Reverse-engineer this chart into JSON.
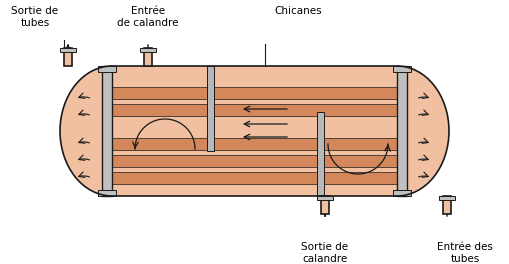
{
  "shell_fill": "#f2c4aa",
  "shell_inner": "#f0c0a0",
  "tube_fill": "#d4875a",
  "tube_gap": "#f0c0a0",
  "baffle_fill": "#b8b8b8",
  "flange_fill": "#c0c0c0",
  "outline": "#1a1a1a",
  "bg": "#ffffff",
  "text_col": "#000000",
  "arrow_col": "#1a1a1a",
  "label_sortie_tubes": "Sortie de\ntubes",
  "label_entree_calandre": "Entrée\nde calandre",
  "label_chicanes": "Chicanes",
  "label_sortie_calandre": "Sortie de\ncalandre",
  "label_entree_tubes": "Entrée des\ntubes",
  "fs": 7.5,
  "dpi": 100,
  "fw": 5.09,
  "fh": 2.64
}
